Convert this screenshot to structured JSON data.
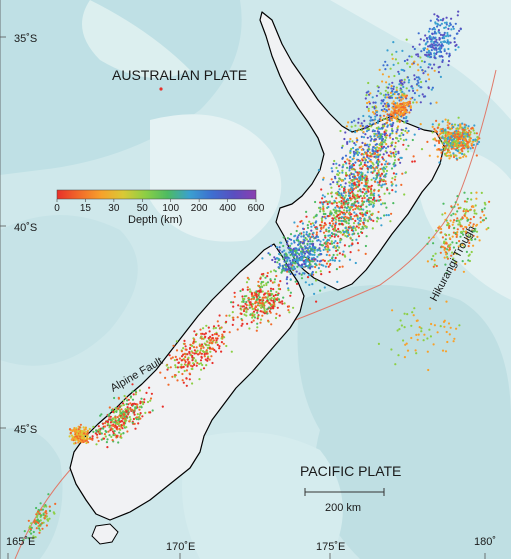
{
  "plates": {
    "australian": "AUSTRALIAN PLATE",
    "pacific": "PACIFIC PLATE"
  },
  "features": {
    "alpine_fault": "Alpine Fault",
    "hikurangi_trough": "Hikurangi Trough"
  },
  "scale_bar": {
    "label": "200 km"
  },
  "latitude_labels": [
    "35˚S",
    "40˚S",
    "45˚S"
  ],
  "longitude_labels": [
    "165˚E",
    "170˚E",
    "175˚E",
    "180˚"
  ],
  "depth_legend": {
    "title": "Depth (km)",
    "ticks": [
      "0",
      "15",
      "30",
      "50",
      "100",
      "200",
      "400",
      "600"
    ],
    "colors": [
      "#e8302a",
      "#f26a2a",
      "#f7a12b",
      "#d9c935",
      "#8ccf45",
      "#4dbb62",
      "#3aa0d0",
      "#3e6fd0",
      "#5a4fc0",
      "#8a3fb0"
    ]
  },
  "colors": {
    "sea_light": "#d9eef0",
    "sea_mid": "#b9dde2",
    "land": "#f1f2f4",
    "coast": "#000000",
    "plate_boundary": "#e07a6a"
  }
}
